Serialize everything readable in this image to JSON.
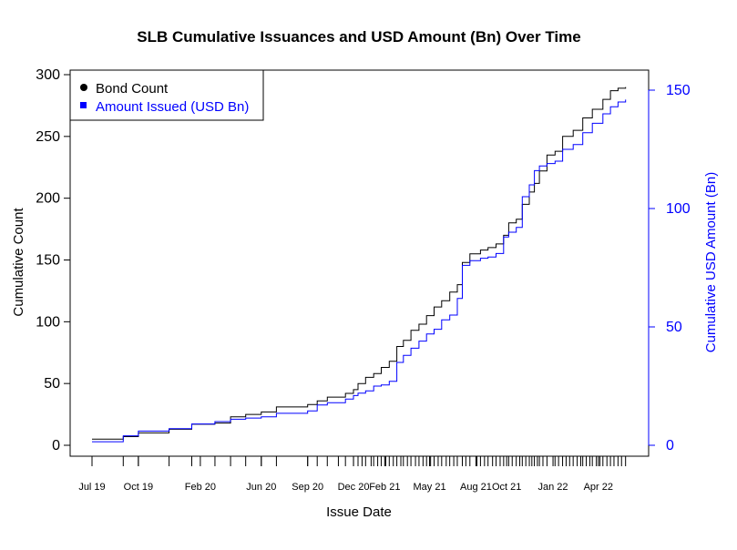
{
  "chart_data": {
    "type": "line",
    "title": "SLB Cumulative Issuances and USD Amount (Bn) Over Time",
    "xlabel": "Issue Date",
    "ylabel_left": "Cumulative Count",
    "ylabel_right": "Cumulative USD Amount (Bn)",
    "ylim_left": [
      0,
      300
    ],
    "ylim_right": [
      0,
      150
    ],
    "xlim": [
      "2019-07-01",
      "2022-05-31"
    ],
    "left_ticks": [
      0,
      50,
      100,
      150,
      200,
      250,
      300
    ],
    "right_ticks": [
      0,
      50,
      100,
      150
    ],
    "x_tick_labels": [
      {
        "date": "2019-07-01",
        "label": "Jul 19"
      },
      {
        "date": "2019-10-01",
        "label": "Oct 19"
      },
      {
        "date": "2020-02-01",
        "label": "Feb 20"
      },
      {
        "date": "2020-06-01",
        "label": "Jun 20"
      },
      {
        "date": "2020-09-01",
        "label": "Sep 20"
      },
      {
        "date": "2020-12-01",
        "label": "Dec 20"
      },
      {
        "date": "2021-02-01",
        "label": "Feb 21"
      },
      {
        "date": "2021-05-01",
        "label": "May 21"
      },
      {
        "date": "2021-08-01",
        "label": "Aug 21"
      },
      {
        "date": "2021-10-01",
        "label": "Oct 21"
      },
      {
        "date": "2022-01-01",
        "label": "Jan 22"
      },
      {
        "date": "2022-04-01",
        "label": "Apr 22"
      }
    ],
    "grid": false,
    "legend": {
      "placement": "top-left",
      "entries": [
        {
          "label": "Bond Count",
          "color": "#000000",
          "marker": "circle"
        },
        {
          "label": "Amount Issued (USD Bn)",
          "color": "#0000ff",
          "marker": "square"
        }
      ]
    },
    "series": [
      {
        "name": "Bond Count",
        "color": "#000000",
        "axis": "left",
        "points": [
          [
            "2019-07-01",
            5
          ],
          [
            "2019-09-01",
            7
          ],
          [
            "2019-10-01",
            10
          ],
          [
            "2019-12-01",
            13
          ],
          [
            "2020-01-15",
            17
          ],
          [
            "2020-03-01",
            18
          ],
          [
            "2020-04-01",
            23
          ],
          [
            "2020-05-01",
            25
          ],
          [
            "2020-06-01",
            27
          ],
          [
            "2020-07-01",
            31
          ],
          [
            "2020-09-01",
            33
          ],
          [
            "2020-09-20",
            36
          ],
          [
            "2020-10-10",
            39
          ],
          [
            "2020-11-15",
            42
          ],
          [
            "2020-12-01",
            45
          ],
          [
            "2020-12-10",
            50
          ],
          [
            "2020-12-25",
            55
          ],
          [
            "2021-01-10",
            58
          ],
          [
            "2021-01-25",
            63
          ],
          [
            "2021-02-10",
            68
          ],
          [
            "2021-02-25",
            80
          ],
          [
            "2021-03-10",
            85
          ],
          [
            "2021-03-25",
            93
          ],
          [
            "2021-04-10",
            98
          ],
          [
            "2021-04-25",
            105
          ],
          [
            "2021-05-10",
            112
          ],
          [
            "2021-05-25",
            117
          ],
          [
            "2021-06-10",
            124
          ],
          [
            "2021-06-25",
            130
          ],
          [
            "2021-07-05",
            148
          ],
          [
            "2021-07-20",
            155
          ],
          [
            "2021-08-10",
            158
          ],
          [
            "2021-08-25",
            160
          ],
          [
            "2021-09-10",
            163
          ],
          [
            "2021-09-25",
            170
          ],
          [
            "2021-10-05",
            180
          ],
          [
            "2021-10-20",
            183
          ],
          [
            "2021-11-01",
            195
          ],
          [
            "2021-11-15",
            205
          ],
          [
            "2021-11-25",
            212
          ],
          [
            "2021-12-05",
            222
          ],
          [
            "2021-12-20",
            235
          ],
          [
            "2022-01-05",
            238
          ],
          [
            "2022-01-20",
            250
          ],
          [
            "2022-02-10",
            255
          ],
          [
            "2022-03-01",
            265
          ],
          [
            "2022-03-20",
            272
          ],
          [
            "2022-04-10",
            280
          ],
          [
            "2022-04-25",
            287
          ],
          [
            "2022-05-10",
            289
          ],
          [
            "2022-05-25",
            290
          ]
        ]
      },
      {
        "name": "Amount Issued (USD Bn)",
        "color": "#0000ff",
        "axis": "right",
        "points": [
          [
            "2019-07-01",
            1.5
          ],
          [
            "2019-09-01",
            4
          ],
          [
            "2019-10-01",
            6
          ],
          [
            "2019-12-01",
            7
          ],
          [
            "2020-01-15",
            9
          ],
          [
            "2020-03-01",
            10
          ],
          [
            "2020-04-01",
            11
          ],
          [
            "2020-05-01",
            11.5
          ],
          [
            "2020-06-01",
            12
          ],
          [
            "2020-07-01",
            13.5
          ],
          [
            "2020-09-01",
            14.5
          ],
          [
            "2020-09-20",
            17
          ],
          [
            "2020-10-10",
            18
          ],
          [
            "2020-11-15",
            19.5
          ],
          [
            "2020-12-01",
            21
          ],
          [
            "2020-12-10",
            22
          ],
          [
            "2020-12-25",
            23
          ],
          [
            "2021-01-10",
            25
          ],
          [
            "2021-01-25",
            25.5
          ],
          [
            "2021-02-10",
            27
          ],
          [
            "2021-02-25",
            35
          ],
          [
            "2021-03-10",
            38
          ],
          [
            "2021-03-25",
            41
          ],
          [
            "2021-04-10",
            44
          ],
          [
            "2021-04-25",
            47
          ],
          [
            "2021-05-10",
            49
          ],
          [
            "2021-05-25",
            53
          ],
          [
            "2021-06-10",
            55
          ],
          [
            "2021-06-25",
            62
          ],
          [
            "2021-07-05",
            76
          ],
          [
            "2021-07-20",
            78
          ],
          [
            "2021-08-10",
            79
          ],
          [
            "2021-08-25",
            79.5
          ],
          [
            "2021-09-10",
            81
          ],
          [
            "2021-09-25",
            88
          ],
          [
            "2021-10-05",
            90
          ],
          [
            "2021-10-20",
            92
          ],
          [
            "2021-11-01",
            105
          ],
          [
            "2021-11-15",
            110
          ],
          [
            "2021-11-25",
            116
          ],
          [
            "2021-12-05",
            118
          ],
          [
            "2021-12-20",
            119
          ],
          [
            "2022-01-05",
            120
          ],
          [
            "2022-01-20",
            125
          ],
          [
            "2022-02-10",
            127
          ],
          [
            "2022-03-01",
            132
          ],
          [
            "2022-03-20",
            136
          ],
          [
            "2022-04-10",
            140
          ],
          [
            "2022-04-25",
            143
          ],
          [
            "2022-05-10",
            145
          ],
          [
            "2022-05-25",
            146
          ]
        ]
      }
    ],
    "issue_date_rug": [
      "2019-07-01",
      "2019-09-01",
      "2019-10-01",
      "2019-12-01",
      "2020-01-15",
      "2020-03-01",
      "2020-04-01",
      "2020-05-01",
      "2020-06-01",
      "2020-07-01",
      "2020-09-01",
      "2020-09-20",
      "2020-10-10",
      "2020-11-01",
      "2020-11-15",
      "2020-12-01",
      "2020-12-10",
      "2020-12-18",
      "2020-12-25",
      "2021-01-05",
      "2021-01-10",
      "2021-01-18",
      "2021-01-25",
      "2021-02-03",
      "2021-02-10",
      "2021-02-18",
      "2021-02-25",
      "2021-03-05",
      "2021-03-10",
      "2021-03-18",
      "2021-03-25",
      "2021-04-03",
      "2021-04-10",
      "2021-04-18",
      "2021-04-25",
      "2021-05-03",
      "2021-05-10",
      "2021-05-18",
      "2021-05-25",
      "2021-06-03",
      "2021-06-10",
      "2021-06-18",
      "2021-06-25",
      "2021-07-05",
      "2021-07-12",
      "2021-07-20",
      "2021-08-03",
      "2021-08-10",
      "2021-08-18",
      "2021-08-25",
      "2021-09-03",
      "2021-09-10",
      "2021-09-18",
      "2021-09-25",
      "2021-10-05",
      "2021-10-12",
      "2021-10-20",
      "2021-10-27",
      "2021-11-01",
      "2021-11-08",
      "2021-11-15",
      "2021-11-20",
      "2021-11-25",
      "2021-12-01",
      "2021-12-05",
      "2021-12-12",
      "2021-12-20",
      "2022-01-05",
      "2022-01-12",
      "2022-01-20",
      "2022-01-27",
      "2022-02-03",
      "2022-02-10",
      "2022-02-18",
      "2022-02-25",
      "2022-03-01",
      "2022-03-08",
      "2022-03-15",
      "2022-03-20",
      "2022-03-28",
      "2022-04-04",
      "2022-04-10",
      "2022-04-18",
      "2022-04-25",
      "2022-05-02",
      "2022-05-10",
      "2022-05-17",
      "2022-05-25"
    ]
  }
}
